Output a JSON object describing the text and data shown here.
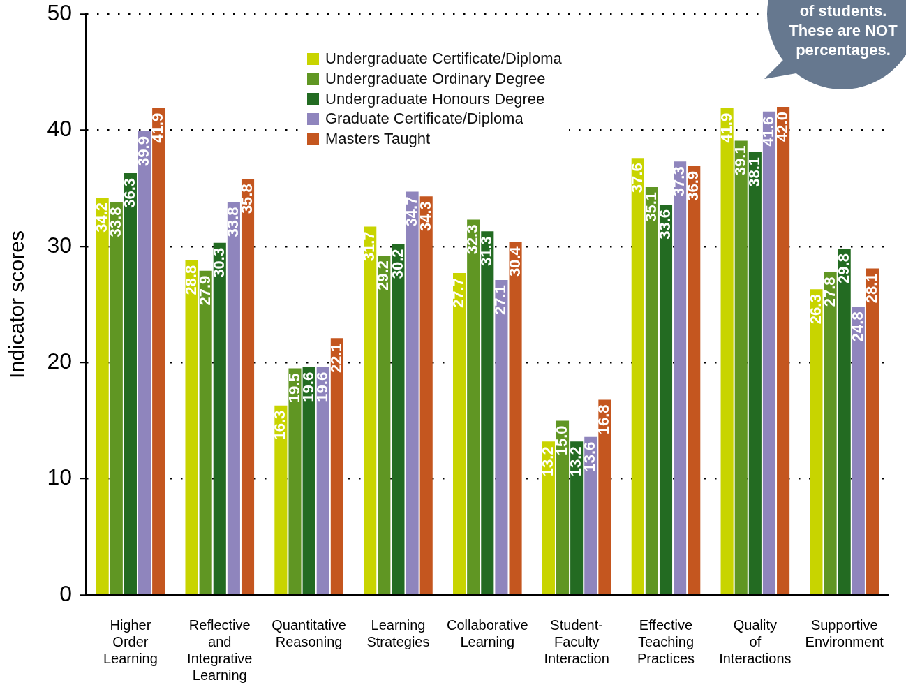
{
  "chart_data": {
    "type": "bar",
    "ylabel": "Indicator scores",
    "categories": [
      "Higher Order Learning",
      "Reflective and Integrative Learning",
      "Quantitative Reasoning",
      "Learning Strategies",
      "Collaborative Learning",
      "Student-Faculty Interaction",
      "Effective Teaching Practices",
      "Quality of Interactions",
      "Supportive Environment"
    ],
    "series": [
      {
        "name": "Undergraduate Certificate/Diploma",
        "color": "#c8d400",
        "values": [
          34.2,
          28.8,
          16.3,
          31.7,
          27.7,
          13.2,
          37.6,
          41.9,
          26.3
        ],
        "value_labels": [
          "34.2",
          "28.8",
          "16.3",
          "31.7",
          "27.7",
          "13.2",
          "37.6",
          "41.9",
          "26.3"
        ]
      },
      {
        "name": "Undergraduate Ordinary Degree",
        "color": "#609623",
        "values": [
          33.8,
          27.9,
          19.5,
          29.2,
          32.3,
          15.0,
          35.1,
          39.1,
          27.8
        ],
        "value_labels": [
          "33.8",
          "27.9",
          "19.5",
          "29.2",
          "32.3",
          "15.0",
          "35.1",
          "39.1",
          "27.8"
        ]
      },
      {
        "name": "Undergraduate Honours Degree",
        "color": "#236b22",
        "values": [
          36.3,
          30.3,
          19.6,
          30.2,
          31.3,
          13.2,
          33.6,
          38.1,
          29.8
        ],
        "value_labels": [
          "36.3",
          "30.3",
          "19.6",
          "30.2",
          "31.3",
          "13.2",
          "33.6",
          "38.1",
          "29.8"
        ]
      },
      {
        "name": "Graduate Certificate/Diploma",
        "color": "#8f85bd",
        "values": [
          39.9,
          33.8,
          19.6,
          34.7,
          27.1,
          13.6,
          37.3,
          41.6,
          24.8
        ],
        "value_labels": [
          "39.9",
          "33.8",
          "19.6",
          "34.7",
          "27.1",
          "13.6",
          "37.3",
          "41.6",
          "24.8"
        ]
      },
      {
        "name": "Masters Taught",
        "color": "#c4561f",
        "values": [
          41.9,
          35.8,
          22.1,
          34.3,
          30.4,
          16.8,
          36.9,
          42.0,
          28.1
        ],
        "value_labels": [
          "41.9",
          "35.8",
          "22.1",
          "34.3",
          "30.4",
          "16.8",
          "36.9",
          "42.0",
          "28.1"
        ]
      }
    ],
    "ylim": [
      0,
      50
    ],
    "yticks": [
      0,
      10,
      20,
      30,
      40,
      50
    ],
    "grid": "y",
    "legend": "top",
    "annotations": [
      "of students. These are NOT percentages."
    ]
  }
}
